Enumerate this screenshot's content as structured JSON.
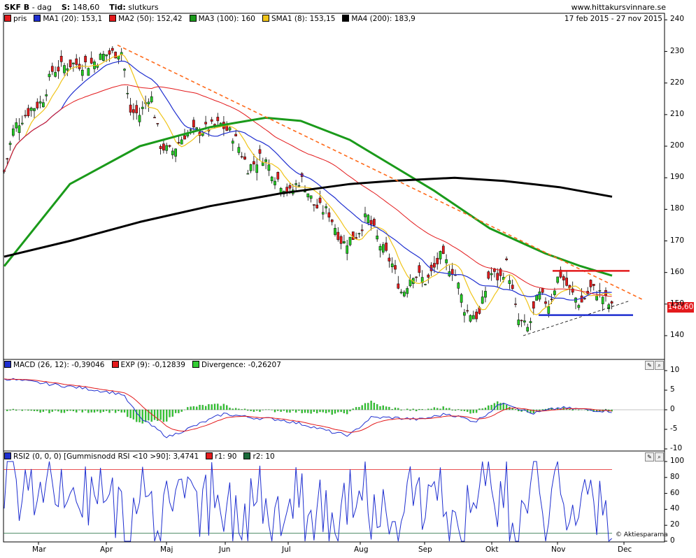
{
  "header": {
    "symbol": "SKF B",
    "period": "dag",
    "s_label": "S:",
    "s_value": "148,60",
    "tid_label": "Tid:",
    "tid_value": "slutkurs",
    "site": "www.hittakursvinnare.se"
  },
  "price_panel": {
    "legend": [
      {
        "label": "pris",
        "color": "#e31a1c"
      },
      {
        "label": "MA1 (20): 153,1",
        "color": "#1f2fd0"
      },
      {
        "label": "MA2 (50): 152,42",
        "color": "#e31a1c"
      },
      {
        "label": "MA3 (100): 160",
        "color": "#1a9a1a"
      },
      {
        "label": "SMA1 (8): 153,15",
        "color": "#f0c419"
      },
      {
        "label": "MA4 (200): 183,9",
        "color": "#000000"
      }
    ],
    "date_range": "17 feb 2015 - 27 nov 2015",
    "last_price": "148,60",
    "y_ticks": [
      "240",
      "230",
      "220",
      "210",
      "200",
      "190",
      "180",
      "170",
      "160",
      "150",
      "140"
    ]
  },
  "macd_panel": {
    "legend": [
      {
        "label": "MACD (26, 12): -0,39046",
        "color": "#1f2fd0"
      },
      {
        "label": "EXP (9): -0,12839",
        "color": "#e31a1c"
      },
      {
        "label": "Divergence: -0,26207",
        "color": "#33cc33"
      }
    ],
    "y_ticks": [
      "10",
      "5",
      "0",
      "-5",
      "-10"
    ]
  },
  "rsi_panel": {
    "legend": [
      {
        "label": "RSI2 (0, 0, 0) [Gummisnodd RSI <10 >90]: 3,4741",
        "color": "#1f2fd0"
      },
      {
        "label": "r1: 90",
        "color": "#e31a1c"
      },
      {
        "label": "r2: 10",
        "color": "#1a6a3a"
      }
    ],
    "y_ticks": [
      "100",
      "80",
      "60",
      "40",
      "20",
      "0"
    ],
    "credit": "Aktiespararna"
  },
  "x_ticks": [
    "Mar",
    "Apr",
    "Maj",
    "Jun",
    "Jul",
    "Aug",
    "Sep",
    "Okt",
    "Nov",
    "Dec"
  ],
  "chart_data": {
    "type": "line",
    "title": "SKF B - dag",
    "date_range": "17 feb 2015 - 27 nov 2015",
    "x": [
      "Mar",
      "Apr",
      "Maj",
      "Jun",
      "Jul",
      "Aug",
      "Sep",
      "Okt",
      "Nov",
      "Dec"
    ],
    "price_close_approx": [
      205,
      222,
      228,
      201,
      205,
      198,
      175,
      158,
      145,
      160,
      150,
      148.6
    ],
    "series": [
      {
        "name": "MA1 (20)",
        "last": 153.1
      },
      {
        "name": "MA2 (50)",
        "last": 152.42
      },
      {
        "name": "MA3 (100)",
        "last": 160
      },
      {
        "name": "SMA1 (8)",
        "last": 153.15
      },
      {
        "name": "MA4 (200)",
        "last": 183.9
      }
    ],
    "ylim": [
      136,
      241
    ],
    "levels": {
      "resistance": 160.5,
      "support": 146.5
    },
    "macd": {
      "macd": -0.39046,
      "exp": -0.12839,
      "divergence": -0.26207,
      "ylim": [
        -12,
        12
      ]
    },
    "rsi": {
      "value": 3.4741,
      "r1": 90,
      "r2": 10,
      "ylim": [
        0,
        100
      ]
    }
  }
}
